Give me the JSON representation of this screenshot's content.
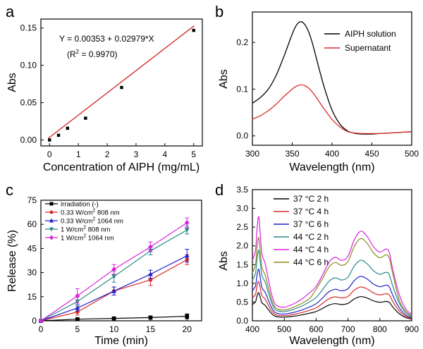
{
  "chart_data": [
    {
      "panel": "a",
      "type": "scatter",
      "xlabel": "Concentration of AIPH (mg/mL)",
      "ylabel": "Abs",
      "xlim": [
        -0.3,
        5.3
      ],
      "ylim": [
        -0.008,
        0.162
      ],
      "xticks": [
        "0",
        "1",
        "2",
        "3",
        "4",
        "5"
      ],
      "yticks": [
        "0.00",
        "0.05",
        "0.10",
        "0.15"
      ],
      "points": [
        [
          0,
          0.0
        ],
        [
          0.3125,
          0.0063
        ],
        [
          0.625,
          0.0157
        ],
        [
          1.25,
          0.0292
        ],
        [
          2.5,
          0.0703
        ],
        [
          5.0,
          0.1468
        ]
      ],
      "fit": {
        "intercept": 0.00353,
        "slope": 0.02979,
        "color": "#cc2222"
      },
      "equation": "Y = 0.00353 + 0.02979*X",
      "r2_prefix": "(R",
      "r2_exp": "2",
      "r2_suffix": " = 0.9970)"
    },
    {
      "panel": "b",
      "type": "line",
      "xlabel": "Wavelength (nm)",
      "ylabel": "Abs",
      "xlim": [
        300,
        500
      ],
      "ylim": [
        -0.02,
        0.265
      ],
      "xticks": [
        "300",
        "350",
        "400",
        "450",
        "500"
      ],
      "yticks": [
        "0.0",
        "0.1",
        "0.2"
      ],
      "series": [
        {
          "name": "AIPH solution",
          "color": "#000000",
          "x": [
            300,
            310,
            320,
            330,
            340,
            350,
            355,
            360,
            365,
            370,
            375,
            380,
            390,
            400,
            410,
            420,
            430,
            440,
            450,
            460,
            470,
            480,
            490,
            500
          ],
          "y": [
            0.07,
            0.082,
            0.1,
            0.13,
            0.172,
            0.218,
            0.236,
            0.244,
            0.24,
            0.225,
            0.2,
            0.168,
            0.105,
            0.055,
            0.025,
            0.01,
            0.005,
            0.004,
            0.004,
            0.005,
            0.006,
            0.007,
            0.008,
            0.009
          ]
        },
        {
          "name": "Supernatant",
          "color": "#dd2a2a",
          "x": [
            300,
            310,
            320,
            330,
            340,
            350,
            355,
            360,
            365,
            370,
            375,
            380,
            390,
            400,
            410,
            420,
            430,
            440,
            450,
            460,
            470,
            480,
            490,
            500
          ],
          "y": [
            0.036,
            0.043,
            0.054,
            0.068,
            0.085,
            0.1,
            0.106,
            0.109,
            0.108,
            0.103,
            0.094,
            0.083,
            0.058,
            0.035,
            0.019,
            0.009,
            0.006,
            0.005,
            0.005,
            0.005,
            0.006,
            0.007,
            0.008,
            0.009
          ]
        }
      ]
    },
    {
      "panel": "c",
      "type": "line",
      "xlabel": "Time (min)",
      "ylabel": "Release (%)",
      "xlim": [
        0,
        22
      ],
      "ylim": [
        0,
        75
      ],
      "xticks": [
        "0",
        "5",
        "10",
        "15",
        "20"
      ],
      "yticks": [
        "0",
        "15",
        "30",
        "45",
        "60",
        "75"
      ],
      "series": [
        {
          "name_main": "irradiation (-)",
          "name_sup": "",
          "name_tail": "",
          "color": "#000000",
          "marker": "square",
          "x": [
            0,
            5,
            10,
            15,
            20
          ],
          "y": [
            0,
            1.0,
            1.5,
            2.0,
            2.8
          ],
          "err": [
            0,
            0.5,
            0.7,
            1.0,
            1.5
          ]
        },
        {
          "name_main": "0.33 W/cm",
          "name_sup": "2",
          "name_tail": " 808 nm",
          "color": "#dd2a2a",
          "marker": "circle",
          "x": [
            0,
            5,
            10,
            15,
            20
          ],
          "y": [
            0,
            5.5,
            18.5,
            25.5,
            38.0
          ],
          "err": [
            0,
            2.0,
            2.5,
            3.5,
            3.0
          ]
        },
        {
          "name_main": "0.33 W/cm",
          "name_sup": "2",
          "name_tail": " 1064 nm",
          "color": "#2222cc",
          "marker": "triangle",
          "x": [
            0,
            5,
            10,
            15,
            20
          ],
          "y": [
            0,
            8.0,
            18.5,
            29.0,
            40.5
          ],
          "err": [
            0,
            2.0,
            2.5,
            2.5,
            4.0
          ]
        },
        {
          "name_main": "1 W/cm",
          "name_sup": "2",
          "name_tail": " 808 nm",
          "color": "#2a8a8a",
          "marker": "triangle-down",
          "x": [
            0,
            5,
            10,
            15,
            20
          ],
          "y": [
            0,
            12.0,
            27.5,
            43.5,
            56.5
          ],
          "err": [
            0,
            3.0,
            3.5,
            2.5,
            2.5
          ]
        },
        {
          "name_main": "1 W/cm",
          "name_sup": "2",
          "name_tail": " 1064 nm",
          "color": "#dd22dd",
          "marker": "diamond",
          "x": [
            0,
            5,
            10,
            15,
            20
          ],
          "y": [
            0,
            15.5,
            32.0,
            46.0,
            61.0
          ],
          "err": [
            0,
            4.5,
            3.0,
            3.0,
            3.0
          ]
        }
      ]
    },
    {
      "panel": "d",
      "type": "line",
      "xlabel": "Wavelength (nm)",
      "ylabel": "Abs",
      "xlim": [
        400,
        900
      ],
      "ylim": [
        0,
        3.5
      ],
      "xticks": [
        "400",
        "500",
        "600",
        "700",
        "800",
        "900"
      ],
      "yticks": [
        "0.0",
        "0.5",
        "1.0",
        "1.5",
        "2.0",
        "2.5",
        "3.0",
        "3.5"
      ],
      "x": [
        400,
        410,
        415,
        420,
        425,
        430,
        440,
        450,
        460,
        470,
        480,
        500,
        520,
        540,
        560,
        580,
        600,
        620,
        640,
        660,
        680,
        700,
        720,
        740,
        760,
        780,
        800,
        820,
        830,
        840,
        860,
        880,
        900
      ],
      "shape": [
        0.58,
        0.68,
        0.9,
        1.0,
        0.82,
        0.64,
        0.55,
        0.4,
        0.26,
        0.17,
        0.14,
        0.13,
        0.15,
        0.18,
        0.22,
        0.27,
        0.33,
        0.44,
        0.56,
        0.61,
        0.58,
        0.62,
        0.78,
        0.86,
        0.81,
        0.71,
        0.66,
        0.69,
        0.65,
        0.5,
        0.26,
        0.12,
        0.06
      ],
      "series": [
        {
          "name": "37 °C 2 h",
          "color": "#000000",
          "peak": 0.75
        },
        {
          "name": "37 °C 4 h",
          "color": "#dd2a2a",
          "peak": 1.05
        },
        {
          "name": "37 °C 6 h",
          "color": "#2222cc",
          "peak": 1.38
        },
        {
          "name": "44 °C 2 h",
          "color": "#2a8a8a",
          "peak": 1.88
        },
        {
          "name": "44 °C 4 h",
          "color": "#dd22dd",
          "peak": 2.78
        },
        {
          "name": "44 °C 6 h",
          "color": "#8a8a22",
          "peak": 2.22
        }
      ]
    }
  ]
}
